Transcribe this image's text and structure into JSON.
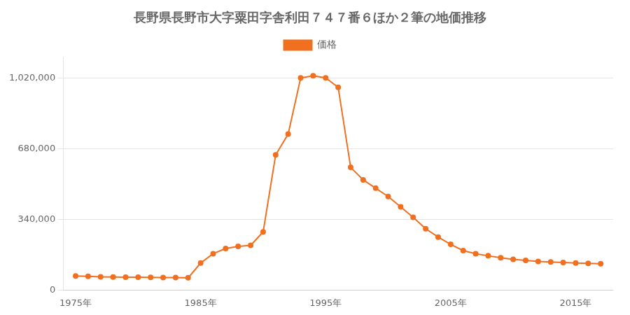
{
  "chart_data": {
    "type": "line",
    "title": "長野県長野市大字粟田字舎利田７４７番６ほか２筆の地価推移",
    "x": [
      1975,
      1976,
      1977,
      1978,
      1979,
      1980,
      1981,
      1982,
      1983,
      1984,
      1985,
      1986,
      1987,
      1988,
      1989,
      1990,
      1991,
      1992,
      1993,
      1994,
      1995,
      1996,
      1997,
      1998,
      1999,
      2000,
      2001,
      2002,
      2003,
      2004,
      2005,
      2006,
      2007,
      2008,
      2009,
      2010,
      2011,
      2012,
      2013,
      2014,
      2015,
      2016,
      2017
    ],
    "series": [
      {
        "name": "価格",
        "color": "#f07020",
        "marker": "circle",
        "values": [
          68000,
          66000,
          64000,
          63000,
          62000,
          62000,
          61000,
          60000,
          60000,
          59000,
          130000,
          175000,
          200000,
          210000,
          215000,
          280000,
          650000,
          750000,
          1020000,
          1030000,
          1020000,
          975000,
          590000,
          530000,
          490000,
          450000,
          400000,
          350000,
          295000,
          255000,
          220000,
          190000,
          175000,
          165000,
          155000,
          148000,
          143000,
          138000,
          135000,
          133000,
          130000,
          128000,
          127000
        ]
      }
    ],
    "xlim": [
      1974,
      2018
    ],
    "xticks": [
      {
        "value": 1975,
        "label": "1975年"
      },
      {
        "value": 1985,
        "label": "1985年"
      },
      {
        "value": 1995,
        "label": "1995年"
      },
      {
        "value": 2005,
        "label": "2005年"
      },
      {
        "value": 2015,
        "label": "2015年"
      }
    ],
    "ylim": [
      0,
      1120000
    ],
    "yticks": [
      0,
      {
        "value": 340000,
        "label": "340,000"
      },
      {
        "value": 680000,
        "label": "680,000"
      },
      {
        "value": 1020000,
        "label": "1,020,000"
      }
    ],
    "grid": "y",
    "legend": "top"
  }
}
